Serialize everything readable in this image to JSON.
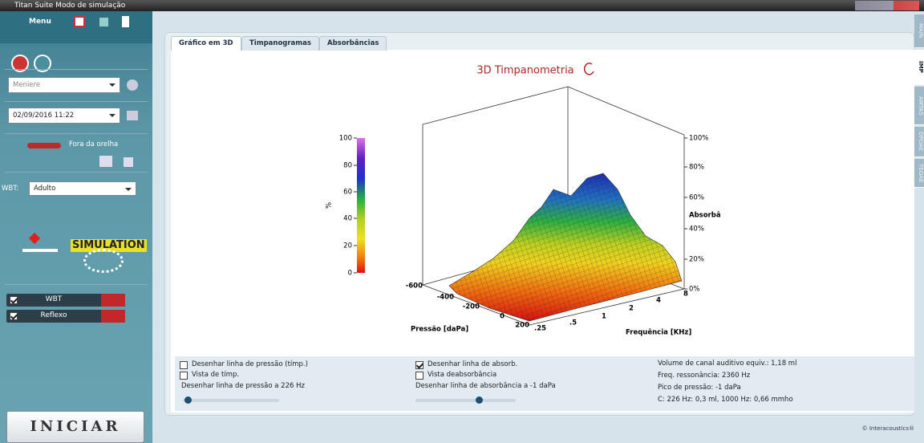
{
  "window": {
    "title": "Titan Suite Modo de simulação"
  },
  "sidebar": {
    "menu": "Menu",
    "protocol": "Meniere",
    "date": "02/09/2016 11:22",
    "ear_status": "Fora da orelha",
    "wbt_label": "WBT:",
    "wbt_value": "Adulto",
    "simulation": "SIMULATION",
    "checks": [
      {
        "label": "WBT",
        "checked": true
      },
      {
        "label": "Reflexo",
        "checked": true
      }
    ],
    "start": "INICIAR"
  },
  "side_tabs": [
    "MAIN",
    "IMP",
    "AMTAS",
    "DPOAE",
    "TEOAE"
  ],
  "active_side_tab": 1,
  "tabs": [
    "Gráfico em 3D",
    "Timpanogramas",
    "Absorbâncias"
  ],
  "active_tab": 0,
  "chart": {
    "title": "3D Timpanometria",
    "colorbar_label": "%",
    "colorbar_ticks": [
      "100",
      "80",
      "60",
      "40",
      "20",
      "0"
    ],
    "absorbance_ticks": [
      "100%",
      "80%",
      "60%",
      "40%",
      "20%",
      "0%"
    ],
    "absorbance_label": "Absorbâ",
    "pressure_ticks": [
      "-600",
      "-400",
      "-200",
      "0",
      "200"
    ],
    "pressure_label": "Pressão [daPa]",
    "frequency_ticks": [
      ".25",
      ".5",
      "1",
      "2",
      "4",
      "8"
    ],
    "frequency_label": "Frequência [KHz]"
  },
  "options": {
    "left": [
      {
        "label": "Desenhar linha de pressão (tímp.)",
        "checked": false
      },
      {
        "label": "Vista de tímp.",
        "checked": false
      }
    ],
    "pressure_line_label": "Desenhar linha de pressão a 226 Hz",
    "middle": [
      {
        "label": "Desenhar linha de absorb.",
        "checked": true
      },
      {
        "label": "Vista deabsorbância",
        "checked": false
      }
    ],
    "absorbance_line_label": "Desenhar linha de absorbância a -1 daPa"
  },
  "results": [
    "Volume de canal auditivo equiv.: 1,18 ml",
    "Freq. ressonância: 2360 Hz",
    "Pico de pressão: -1 daPa",
    "C: 226 Hz: 0,3 ml, 1000 Hz: 0,66 mmho"
  ],
  "footer": "© Interacoustics®"
}
